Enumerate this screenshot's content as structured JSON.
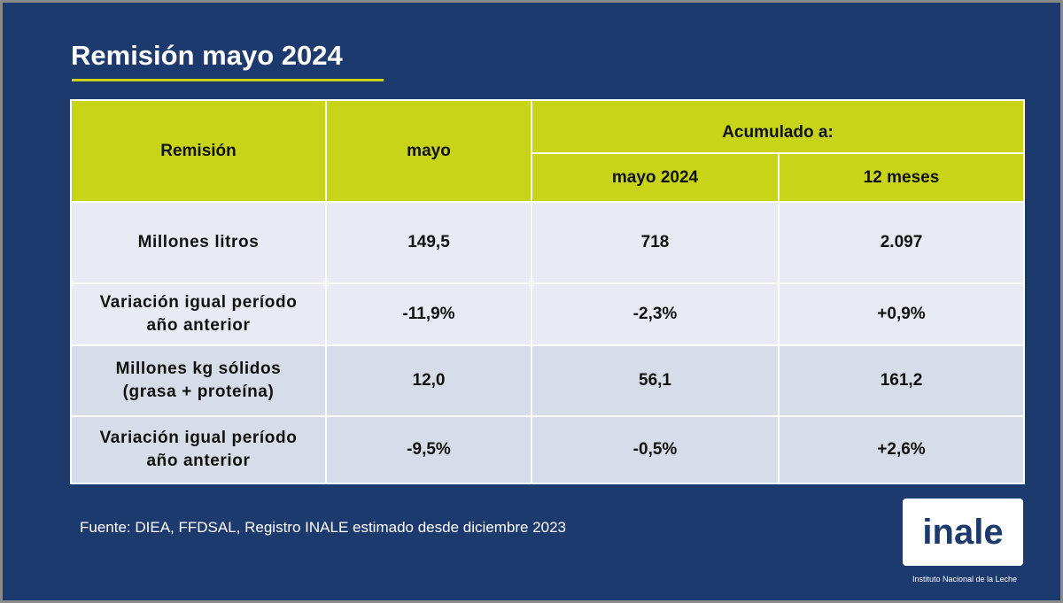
{
  "title": "Remisión mayo 2024",
  "colors": {
    "background": "#1d3a6e",
    "accent": "#c8d418",
    "row_light": "#e8ebf4",
    "row_dark": "#d6dde8"
  },
  "table": {
    "headers": {
      "remision": "Remisión",
      "mayo": "mayo",
      "acumulado": "Acumulado a:",
      "mayo_2024": "mayo 2024",
      "doce_meses": "12 meses"
    },
    "rows": [
      {
        "label_1": "Millones litros",
        "label_2": "",
        "mayo": "149,5",
        "mayo_2024": "718",
        "doce_meses": "2.097"
      },
      {
        "label_1": "Variación igual período",
        "label_2": "año anterior",
        "mayo": "-11,9%",
        "mayo_2024": "-2,3%",
        "doce_meses": "+0,9%"
      },
      {
        "label_1": "Millones kg sólidos",
        "label_2": "(grasa + proteína)",
        "mayo": "12,0",
        "mayo_2024": "56,1",
        "doce_meses": "161,2"
      },
      {
        "label_1": "Variación igual período",
        "label_2": "año anterior",
        "mayo": "-9,5%",
        "mayo_2024": "-0,5%",
        "doce_meses": "+2,6%"
      }
    ]
  },
  "source": "Fuente: DIEA, FFDSAL, Registro INALE estimado desde diciembre 2023",
  "logo": {
    "word": "inale",
    "subtitle": "Instituto Nacional de la Leche"
  }
}
